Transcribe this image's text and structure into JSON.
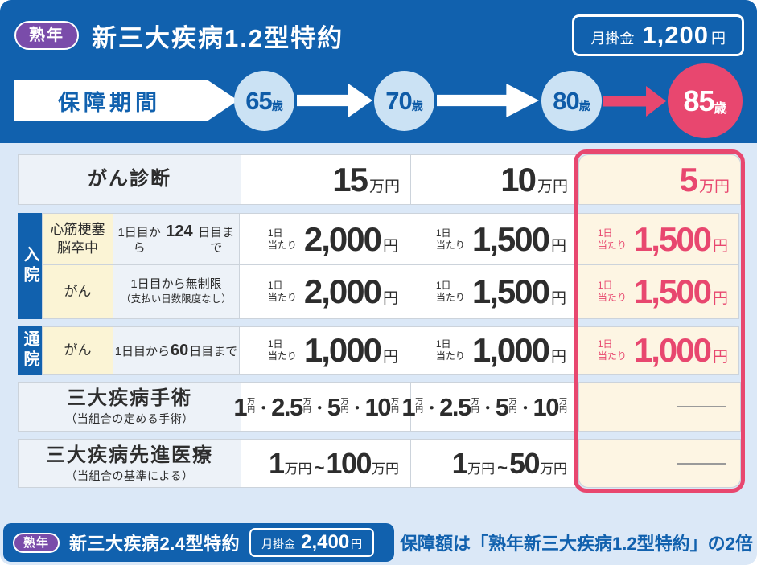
{
  "palette": {
    "header_blue": "#1161ae",
    "page_bg": "#dbe8f7",
    "badge_purple": "#7a4caa",
    "accent_pink": "#e8476f",
    "age_circle_blue": "#cbe2f4",
    "label_cell_gray": "#edf2f8",
    "disease_cell_cream": "#fbf4d5",
    "highlight_cell_cream": "#fdf5e3"
  },
  "header": {
    "badge": "熟年",
    "title": "新三大疾病1.2型特約",
    "premium": {
      "label": "月掛金",
      "value": "1,200",
      "unit": "円"
    },
    "period_label": "保障期間",
    "ages": [
      {
        "num": "65",
        "unit": "歳"
      },
      {
        "num": "70",
        "unit": "歳"
      },
      {
        "num": "80",
        "unit": "歳"
      },
      {
        "num": "85",
        "unit": "歳"
      }
    ]
  },
  "units": {
    "yen": "円",
    "man_yen": "万円",
    "man": "万"
  },
  "labels": {
    "per_day_line1": "1日",
    "per_day_line2": "当たり"
  },
  "sep": {
    "dot": "・",
    "tilde": "~"
  },
  "table": {
    "diagnosis": {
      "label": "がん診断",
      "values": [
        "15",
        "10",
        "5"
      ]
    },
    "hospitalization": {
      "group_label": "入院",
      "row_infarction": {
        "disease_line1": "心筋梗塞",
        "disease_line2": "脳卒中",
        "condition": {
          "pre": "1日目から",
          "num": "124",
          "post": "日目まで"
        },
        "values": [
          "2,000",
          "1,500",
          "1,500"
        ]
      },
      "row_cancer": {
        "disease": "がん",
        "condition_line1": "1日目から無制限",
        "condition_line2": "（支払い日数限度なし）",
        "values": [
          "2,000",
          "1,500",
          "1,500"
        ]
      }
    },
    "outpatient": {
      "group_label": "通院",
      "disease": "がん",
      "condition": {
        "pre": "1日目から",
        "num": "60",
        "post": "日目まで"
      },
      "values": [
        "1,000",
        "1,000",
        "1,000"
      ]
    },
    "surgery": {
      "label": "三大疾病手術",
      "note": "（当組合の定める手術）",
      "amounts": [
        "1",
        "2.5",
        "5",
        "10"
      ]
    },
    "advanced_medical": {
      "label": "三大疾病先進医療",
      "note": "（当組合の基準による）",
      "col1": {
        "from": "1",
        "to": "100"
      },
      "col2": {
        "from": "1",
        "to": "50"
      }
    },
    "empty_dash": "—"
  },
  "footer": {
    "badge": "熟年",
    "title": "新三大疾病2.4型特約",
    "premium": {
      "label": "月掛金",
      "value": "2,400",
      "unit": "円"
    },
    "note": "保障額は「熟年新三大疾病1.2型特約」の2倍"
  }
}
